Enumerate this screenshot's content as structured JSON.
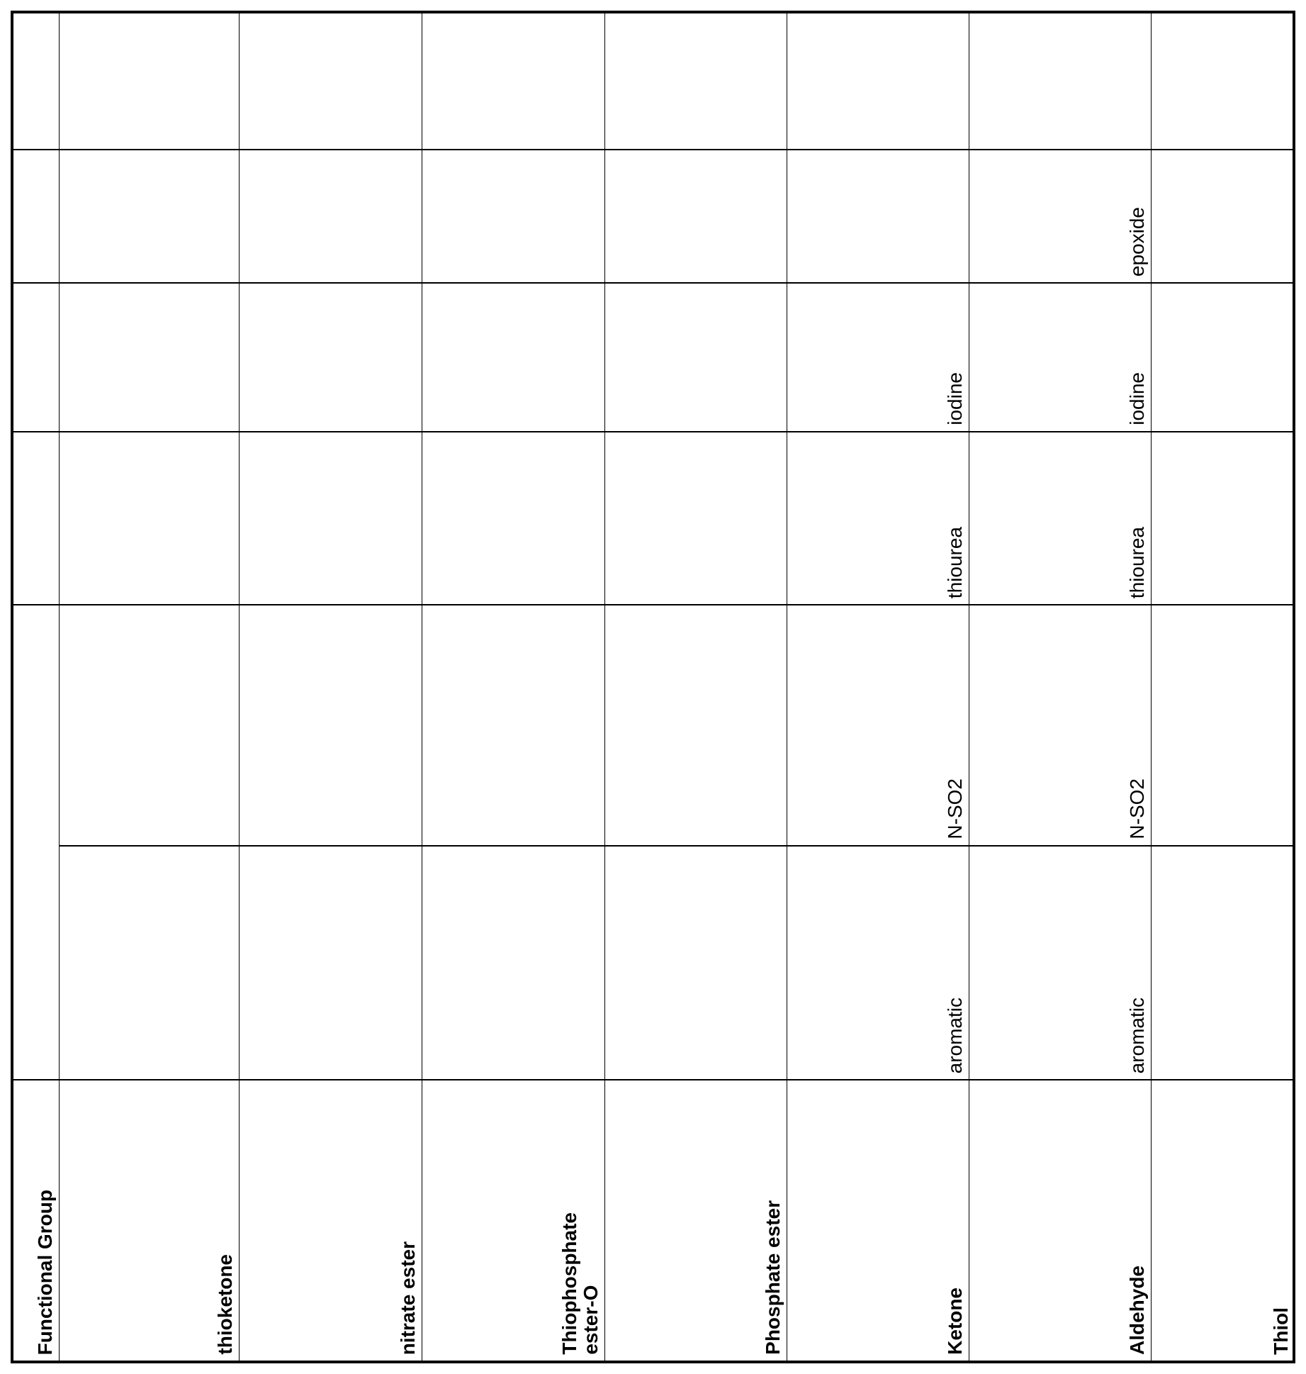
{
  "table": {
    "header_label": "Functional Group",
    "groups": [
      {
        "name": "thioketone",
        "values": [
          "",
          "",
          "",
          "",
          "",
          ""
        ]
      },
      {
        "name": "nitrate ester",
        "values": [
          "",
          "",
          "",
          "",
          "",
          ""
        ]
      },
      {
        "name": "Thiophosphate\nester-O",
        "values": [
          "",
          "",
          "",
          "",
          "",
          ""
        ]
      },
      {
        "name": "Phosphate ester",
        "values": [
          "",
          "",
          "",
          "",
          "",
          ""
        ]
      },
      {
        "name": "Ketone",
        "values": [
          "aromatic",
          "N-SO2",
          "thiourea",
          "iodine",
          "",
          ""
        ]
      },
      {
        "name": "Aldehyde",
        "values": [
          "aromatic",
          "N-SO2",
          "thiourea",
          "iodine",
          "epoxide",
          ""
        ]
      },
      {
        "name": "Thiol",
        "values": [
          "",
          "",
          "",
          "",
          "",
          ""
        ]
      }
    ]
  }
}
